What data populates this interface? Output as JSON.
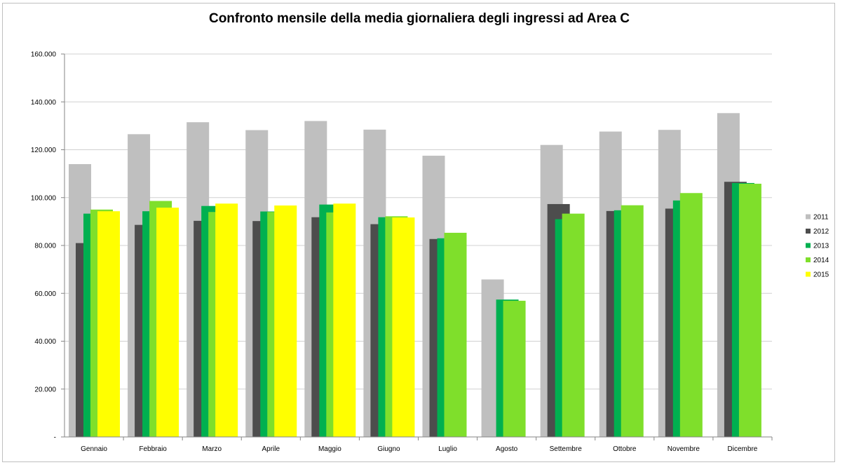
{
  "chart_data": {
    "type": "bar",
    "title": "Confronto mensile della media giornaliera degli ingressi ad Area C",
    "xlabel": "",
    "ylabel": "",
    "ylim": [
      0,
      160000
    ],
    "y_ticks": [
      {
        "value": 0,
        "label": "-"
      },
      {
        "value": 20000,
        "label": "20.000"
      },
      {
        "value": 40000,
        "label": "40.000"
      },
      {
        "value": 60000,
        "label": "60.000"
      },
      {
        "value": 80000,
        "label": "80.000"
      },
      {
        "value": 100000,
        "label": "100.000"
      },
      {
        "value": 120000,
        "label": "120.000"
      },
      {
        "value": 140000,
        "label": "140.000"
      },
      {
        "value": 160000,
        "label": "160.000"
      }
    ],
    "grid": true,
    "legend_position": "right",
    "categories": [
      "Gennaio",
      "Febbraio",
      "Marzo",
      "Aprile",
      "Maggio",
      "Giugno",
      "Luglio",
      "Agosto",
      "Settembre",
      "Ottobre",
      "Novembre",
      "Dicembre"
    ],
    "series": [
      {
        "name": "2011",
        "color": "#bfbfbf",
        "values": [
          114000,
          126500,
          131500,
          128200,
          132000,
          128400,
          117500,
          65800,
          122000,
          127600,
          128300,
          135300
        ]
      },
      {
        "name": "2012",
        "color": "#4d4d4d",
        "values": [
          81000,
          88600,
          90300,
          90200,
          91800,
          88900,
          82700,
          null,
          97300,
          94400,
          95400,
          106600
        ]
      },
      {
        "name": "2013",
        "color": "#00b050",
        "values": [
          93300,
          94300,
          96500,
          94200,
          97100,
          91800,
          83000,
          57400,
          91000,
          94700,
          98800,
          106100
        ]
      },
      {
        "name": "2014",
        "color": "#7fdf2b",
        "values": [
          95000,
          98600,
          94000,
          94000,
          93800,
          92200,
          85300,
          56900,
          93300,
          96800,
          101900,
          105800
        ]
      },
      {
        "name": "2015",
        "color": "#ffff00",
        "values": [
          94300,
          95800,
          97500,
          96700,
          97500,
          91700,
          null,
          null,
          null,
          null,
          null,
          null
        ]
      }
    ]
  }
}
